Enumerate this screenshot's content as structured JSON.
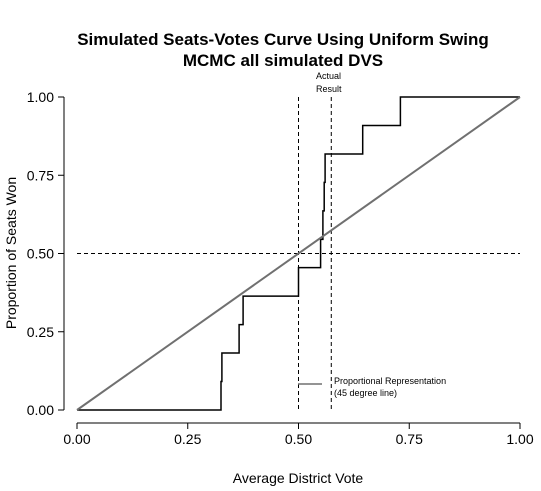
{
  "chart_data": {
    "type": "line",
    "title": "Simulated Seats-Votes Curve Using Uniform Swing",
    "subtitle": "MCMC all simulated DVS",
    "xlabel": "Average District Vote",
    "ylabel": "Proportion of Seats Won",
    "xlim": [
      0,
      1
    ],
    "ylim": [
      0,
      1
    ],
    "x_ticks": [
      "0.00",
      "0.25",
      "0.50",
      "0.75",
      "1.00"
    ],
    "y_ticks": [
      "0.00",
      "0.25",
      "0.50",
      "0.75",
      "1.00"
    ],
    "grid": false,
    "series": [
      {
        "color": "#000000",
        "step_points": [
          [
            0.0,
            0.0
          ],
          [
            0.325,
            0.0
          ],
          [
            0.325,
            0.091
          ],
          [
            0.327,
            0.091
          ],
          [
            0.327,
            0.182
          ],
          [
            0.366,
            0.182
          ],
          [
            0.366,
            0.273
          ],
          [
            0.375,
            0.273
          ],
          [
            0.375,
            0.364
          ],
          [
            0.5,
            0.364
          ],
          [
            0.5,
            0.455
          ],
          [
            0.55,
            0.455
          ],
          [
            0.55,
            0.545
          ],
          [
            0.555,
            0.545
          ],
          [
            0.555,
            0.636
          ],
          [
            0.558,
            0.636
          ],
          [
            0.558,
            0.727
          ],
          [
            0.56,
            0.727
          ],
          [
            0.56,
            0.818
          ],
          [
            0.645,
            0.818
          ],
          [
            0.645,
            0.909
          ],
          [
            0.73,
            0.909
          ],
          [
            0.73,
            1.0
          ],
          [
            1.0,
            1.0
          ]
        ]
      },
      {
        "color": "#707070",
        "points": [
          [
            0,
            0
          ],
          [
            1,
            1
          ]
        ]
      }
    ],
    "reference_lines": {
      "vertical": [
        0.5,
        0.574
      ],
      "horizontal": [
        0.5
      ],
      "style": "dashed"
    },
    "annotations": {
      "actual_result_line1": "Actual",
      "actual_result_line2": "Result",
      "legend_line1": "Proportional Representation",
      "legend_line2": "(45 degree line)"
    },
    "legend_position": "bottom-right"
  }
}
